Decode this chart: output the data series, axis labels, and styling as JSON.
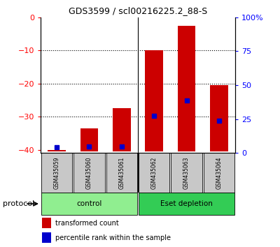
{
  "title": "GDS3599 / scl00216225.2_88-S",
  "samples": [
    "GSM435059",
    "GSM435060",
    "GSM435061",
    "GSM435062",
    "GSM435063",
    "GSM435064"
  ],
  "transformed_count": [
    -40.0,
    -33.5,
    -27.5,
    -10.0,
    -2.5,
    -20.5
  ],
  "percentile_rank": [
    2.0,
    2.5,
    2.5,
    25.5,
    37.0,
    22.0
  ],
  "bar_bottom": -40.5,
  "ylim_left": [
    -41,
    0
  ],
  "ylim_right": [
    0,
    100
  ],
  "yticks_left": [
    0,
    -10,
    -20,
    -30,
    -40
  ],
  "yticks_right": [
    0,
    25,
    50,
    75,
    100
  ],
  "groups": [
    {
      "label": "control",
      "samples": [
        0,
        1,
        2
      ],
      "color": "#90EE90"
    },
    {
      "label": "Eset depletion",
      "samples": [
        3,
        4,
        5
      ],
      "color": "#33CC55"
    }
  ],
  "bar_color": "#CC0000",
  "percentile_color": "#0000CC",
  "bar_width": 0.55,
  "plot_bg_color": "#FFFFFF",
  "tick_area_color": "#C8C8C8",
  "legend_red_label": "transformed count",
  "legend_blue_label": "percentile rank within the sample",
  "protocol_label": "protocol"
}
